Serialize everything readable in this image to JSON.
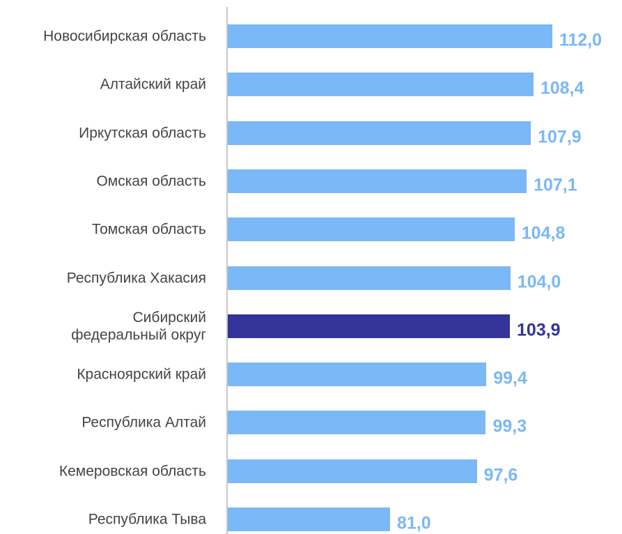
{
  "chart_data": {
    "type": "bar",
    "orientation": "horizontal",
    "categories": [
      "Новосибирская область",
      "Алтайский край",
      "Иркутская область",
      "Омская область",
      "Томская область",
      "Республика Хакасия",
      "Сибирский\nфедеральный округ",
      "Красноярский край",
      "Республика Алтай",
      "Кемеровская область",
      "Республика Тыва"
    ],
    "values": [
      112.0,
      108.4,
      107.9,
      107.1,
      104.8,
      104.0,
      103.9,
      99.4,
      99.3,
      97.6,
      81.0
    ],
    "value_labels": [
      "112,0",
      "108,4",
      "107,9",
      "107,1",
      "104,8",
      "104,0",
      "103,9",
      "99,4",
      "99,3",
      "97,6",
      "81,0"
    ],
    "colors": [
      "#7ab8f7",
      "#7ab8f7",
      "#7ab8f7",
      "#7ab8f7",
      "#7ab8f7",
      "#7ab8f7",
      "#333399",
      "#7ab8f7",
      "#7ab8f7",
      "#7ab8f7",
      "#7ab8f7"
    ],
    "xlim": [
      50,
      120
    ]
  }
}
